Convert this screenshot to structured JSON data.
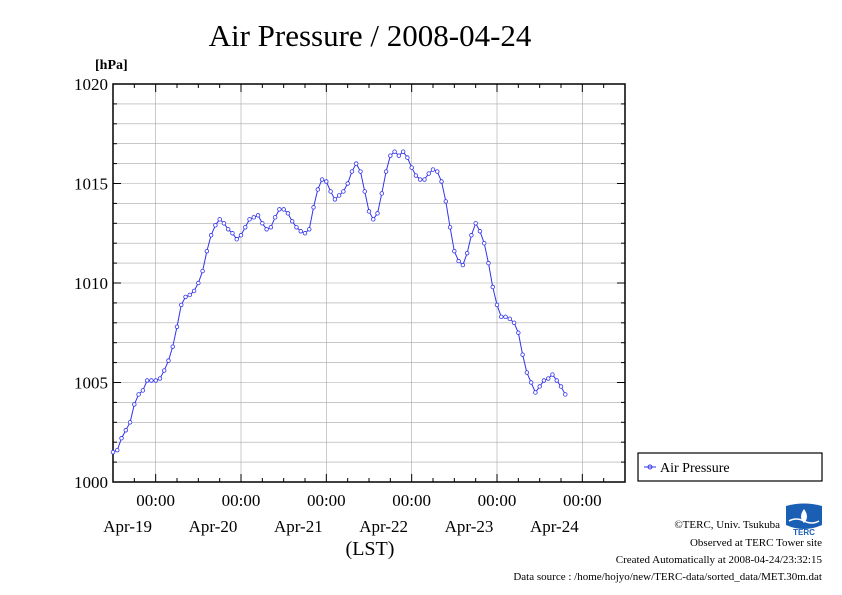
{
  "chart_data": {
    "type": "line",
    "title": "Air Pressure / 2008-04-24",
    "ylabel": "[hPa]",
    "xlabel": "(LST)",
    "ylim": [
      1000,
      1020
    ],
    "yticks": [
      "1000",
      "1005",
      "1010",
      "1015",
      "1020"
    ],
    "xlim_days": [
      -0.5,
      5.5
    ],
    "xticks": [
      {
        "day": 0,
        "time": "00:00",
        "date": "Apr-19"
      },
      {
        "day": 1,
        "time": "00:00",
        "date": "Apr-20"
      },
      {
        "day": 2,
        "time": "00:00",
        "date": "Apr-21"
      },
      {
        "day": 3,
        "time": "00:00",
        "date": "Apr-22"
      },
      {
        "day": 4,
        "time": "00:00",
        "date": "Apr-23"
      },
      {
        "day": 5,
        "time": "00:00",
        "date": "Apr-24"
      }
    ],
    "grid": true,
    "legend_position": "right",
    "series": [
      {
        "name": "Air Pressure",
        "color": "#3333ee",
        "points": [
          [
            -0.5,
            1001.5
          ],
          [
            -0.45,
            1001.6
          ],
          [
            -0.4,
            1002.2
          ],
          [
            -0.35,
            1002.6
          ],
          [
            -0.3,
            1003.0
          ],
          [
            -0.25,
            1003.9
          ],
          [
            -0.2,
            1004.4
          ],
          [
            -0.15,
            1004.6
          ],
          [
            -0.1,
            1005.1
          ],
          [
            -0.05,
            1005.1
          ],
          [
            0.0,
            1005.1
          ],
          [
            0.05,
            1005.2
          ],
          [
            0.1,
            1005.6
          ],
          [
            0.15,
            1006.1
          ],
          [
            0.2,
            1006.8
          ],
          [
            0.25,
            1007.8
          ],
          [
            0.3,
            1008.9
          ],
          [
            0.35,
            1009.3
          ],
          [
            0.4,
            1009.4
          ],
          [
            0.45,
            1009.6
          ],
          [
            0.5,
            1010.0
          ],
          [
            0.55,
            1010.6
          ],
          [
            0.6,
            1011.6
          ],
          [
            0.65,
            1012.4
          ],
          [
            0.7,
            1012.9
          ],
          [
            0.75,
            1013.2
          ],
          [
            0.8,
            1013.0
          ],
          [
            0.85,
            1012.7
          ],
          [
            0.9,
            1012.5
          ],
          [
            0.95,
            1012.2
          ],
          [
            1.0,
            1012.4
          ],
          [
            1.05,
            1012.8
          ],
          [
            1.1,
            1013.2
          ],
          [
            1.15,
            1013.3
          ],
          [
            1.2,
            1013.4
          ],
          [
            1.25,
            1013.0
          ],
          [
            1.3,
            1012.7
          ],
          [
            1.35,
            1012.8
          ],
          [
            1.4,
            1013.3
          ],
          [
            1.45,
            1013.7
          ],
          [
            1.5,
            1013.7
          ],
          [
            1.55,
            1013.5
          ],
          [
            1.6,
            1013.1
          ],
          [
            1.65,
            1012.8
          ],
          [
            1.7,
            1012.6
          ],
          [
            1.75,
            1012.5
          ],
          [
            1.8,
            1012.7
          ],
          [
            1.85,
            1013.8
          ],
          [
            1.9,
            1014.7
          ],
          [
            1.95,
            1015.2
          ],
          [
            2.0,
            1015.1
          ],
          [
            2.05,
            1014.6
          ],
          [
            2.1,
            1014.2
          ],
          [
            2.15,
            1014.4
          ],
          [
            2.2,
            1014.6
          ],
          [
            2.25,
            1015.0
          ],
          [
            2.3,
            1015.6
          ],
          [
            2.35,
            1016.0
          ],
          [
            2.4,
            1015.6
          ],
          [
            2.45,
            1014.6
          ],
          [
            2.5,
            1013.6
          ],
          [
            2.55,
            1013.2
          ],
          [
            2.6,
            1013.5
          ],
          [
            2.65,
            1014.5
          ],
          [
            2.7,
            1015.6
          ],
          [
            2.75,
            1016.4
          ],
          [
            2.8,
            1016.6
          ],
          [
            2.85,
            1016.4
          ],
          [
            2.9,
            1016.6
          ],
          [
            2.95,
            1016.3
          ],
          [
            3.0,
            1015.8
          ],
          [
            3.05,
            1015.4
          ],
          [
            3.1,
            1015.2
          ],
          [
            3.15,
            1015.2
          ],
          [
            3.2,
            1015.5
          ],
          [
            3.25,
            1015.7
          ],
          [
            3.3,
            1015.6
          ],
          [
            3.35,
            1015.1
          ],
          [
            3.4,
            1014.1
          ],
          [
            3.45,
            1012.8
          ],
          [
            3.5,
            1011.6
          ],
          [
            3.55,
            1011.1
          ],
          [
            3.6,
            1010.9
          ],
          [
            3.65,
            1011.5
          ],
          [
            3.7,
            1012.4
          ],
          [
            3.75,
            1013.0
          ],
          [
            3.8,
            1012.6
          ],
          [
            3.85,
            1012.0
          ],
          [
            3.9,
            1011.0
          ],
          [
            3.95,
            1009.8
          ],
          [
            4.0,
            1008.9
          ],
          [
            4.05,
            1008.3
          ],
          [
            4.1,
            1008.3
          ],
          [
            4.15,
            1008.2
          ],
          [
            4.2,
            1008.0
          ],
          [
            4.25,
            1007.5
          ],
          [
            4.3,
            1006.4
          ],
          [
            4.35,
            1005.5
          ],
          [
            4.4,
            1005.0
          ],
          [
            4.45,
            1004.5
          ],
          [
            4.5,
            1004.8
          ],
          [
            4.55,
            1005.1
          ],
          [
            4.6,
            1005.2
          ],
          [
            4.65,
            1005.4
          ],
          [
            4.7,
            1005.1
          ],
          [
            4.75,
            1004.8
          ],
          [
            4.8,
            1004.4
          ]
        ]
      }
    ]
  },
  "footer": {
    "copyright": "©TERC, Univ. Tsukuba",
    "observed": "Observed at TERC Tower site",
    "created": "Created Automatically at 2008-04-24/23:32:15",
    "source": "Data source : /home/hojyo/new/TERC-data/sorted_data/MET.30m.dat"
  },
  "logo": {
    "text": "TERC",
    "color": "#1a5fb4"
  }
}
